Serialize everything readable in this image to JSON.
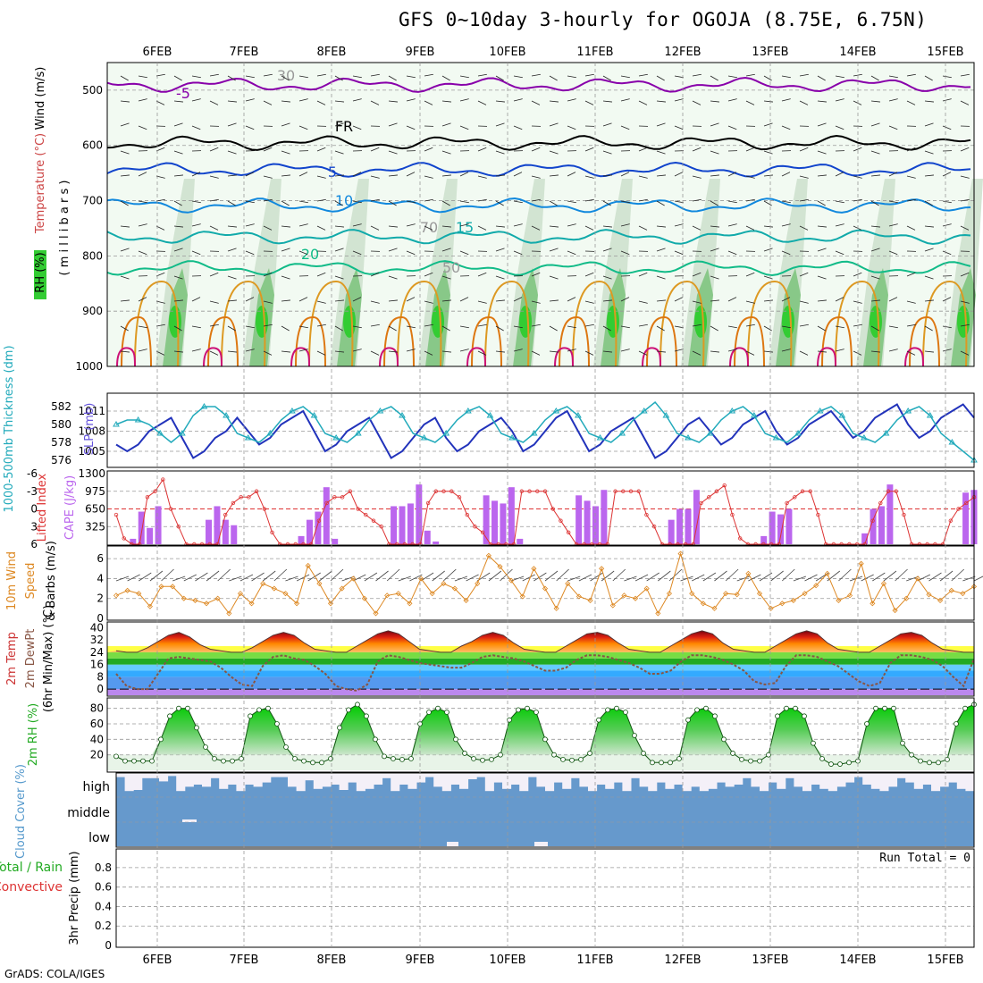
{
  "title": "GFS 0~10day 3-hourly for OGOJA (8.75E, 6.75N)",
  "credit": "GrADS: COLA/IGES",
  "dates": [
    "6FEB",
    "7FEB",
    "8FEB",
    "9FEB",
    "10FEB",
    "11FEB",
    "12FEB",
    "13FEB",
    "14FEB",
    "15FEB"
  ],
  "colors": {
    "temp_contours": [
      "#8800aa",
      "#1144cc",
      "#1188dd",
      "#11aaaa",
      "#11bb88",
      "#dd9922",
      "#dd7711",
      "#cc1177"
    ],
    "slp": "#2233bb",
    "thickness": "#22aabb",
    "cape": "#bb66ee",
    "li": "#dd3333",
    "wind": "#dd8822",
    "rh": "#22bb22",
    "cloud": "#6699cc"
  },
  "chart_data": [
    {
      "type": "contour",
      "panel": "upper-air",
      "ylabel_parts": [
        "RH (%)",
        "Temperature (°C)",
        "Wind (m/s)"
      ],
      "ylabel2": "( m i l l i b a r s )",
      "y_ticks": [
        "500",
        "600",
        "700",
        "800",
        "900",
        "1000"
      ],
      "ylim": [
        1000,
        450
      ],
      "contour_labels": [
        "-5",
        "FR",
        "5",
        "10",
        "15",
        "20",
        "30",
        "50",
        "70"
      ]
    },
    {
      "type": "line",
      "panel": "slp-thickness",
      "ylabel_left": "1000-500mb Thickness (dm)",
      "ylabel_right": "SLP (mb)",
      "left_ticks": [
        "582",
        "580",
        "578",
        "576"
      ],
      "right_ticks": [
        "1011",
        "1008",
        "1005"
      ],
      "series": [
        {
          "name": "SLP",
          "values": [
            1006,
            1005,
            1006,
            1008,
            1009,
            1010,
            1007,
            1004,
            1005,
            1007,
            1008,
            1010,
            1008,
            1006,
            1007,
            1009,
            1010,
            1011,
            1008,
            1005,
            1006,
            1008,
            1009,
            1010,
            1007,
            1004,
            1005,
            1007,
            1009,
            1010,
            1007,
            1005,
            1006,
            1008,
            1009,
            1010,
            1008,
            1005,
            1006,
            1008,
            1010,
            1011,
            1008,
            1005,
            1006,
            1008,
            1009,
            1010,
            1007,
            1004,
            1005,
            1007,
            1009,
            1010,
            1008,
            1006,
            1007,
            1009,
            1010,
            1011,
            1008,
            1006,
            1007,
            1009,
            1010,
            1011,
            1009,
            1007,
            1008,
            1010,
            1011,
            1012,
            1009,
            1007,
            1008,
            1010,
            1011,
            1012,
            1010
          ]
        },
        {
          "name": "Thickness",
          "values": [
            580,
            580.5,
            580.5,
            580,
            579,
            578,
            579,
            581,
            582,
            582,
            581,
            579,
            578.5,
            578,
            579,
            580.5,
            581.5,
            582,
            581,
            579,
            578.5,
            578,
            579,
            580.5,
            581.5,
            582,
            581,
            579,
            578.5,
            578,
            579,
            580.5,
            581.5,
            582,
            581,
            579,
            578.5,
            578,
            579,
            580.5,
            581.5,
            582,
            581,
            579,
            578.5,
            578,
            579,
            580.5,
            581.5,
            582.5,
            581,
            579,
            578.5,
            578,
            579,
            580.5,
            581.5,
            582,
            581,
            579,
            578.5,
            578,
            579,
            580.5,
            581.5,
            582,
            581,
            579,
            578.5,
            578,
            579,
            580.5,
            581.5,
            582,
            581,
            579,
            578,
            577,
            576
          ]
        }
      ]
    },
    {
      "type": "bar",
      "panel": "cape-li",
      "ylabel_left": "Lifted Index",
      "ylabel_right": "CAPE (J/kg)",
      "left_ticks": [
        "-6",
        "-3",
        "0",
        "3",
        "6"
      ],
      "right_ticks": [
        "1300",
        "975",
        "650",
        "325"
      ],
      "cape_values": [
        0,
        0,
        100,
        600,
        300,
        700,
        0,
        0,
        0,
        0,
        0,
        450,
        700,
        450,
        350,
        0,
        0,
        0,
        0,
        0,
        0,
        0,
        150,
        450,
        600,
        1050,
        100,
        0,
        0,
        0,
        0,
        0,
        0,
        700,
        700,
        750,
        1100,
        250,
        50,
        0,
        0,
        0,
        0,
        0,
        900,
        800,
        750,
        1050,
        100,
        0,
        0,
        0,
        0,
        0,
        0,
        900,
        800,
        700,
        1000,
        0,
        0,
        0,
        0,
        0,
        0,
        0,
        450,
        650,
        650,
        1000,
        0,
        0,
        0,
        0,
        0,
        0,
        0,
        150,
        600,
        550,
        650,
        0,
        0,
        0,
        0,
        0,
        0,
        0,
        0,
        200,
        650,
        700,
        1100,
        0,
        0,
        0,
        0,
        0,
        0,
        0,
        0,
        950,
        1000
      ],
      "li_values": [
        1,
        5,
        6,
        6,
        -2,
        -3,
        -5,
        0,
        3,
        6,
        6,
        6,
        6,
        6,
        1,
        -1,
        -2,
        -2,
        -3,
        0,
        4,
        6,
        6,
        6,
        6,
        6,
        2,
        -1,
        -2,
        -2,
        -3,
        0,
        1,
        2,
        3,
        6,
        6,
        6,
        6,
        6,
        -1,
        -3,
        -3,
        -3,
        -2,
        1,
        3,
        4,
        6,
        6,
        6,
        6,
        -3,
        -3,
        -3,
        -3,
        0,
        2,
        4,
        6,
        6,
        6,
        6,
        6,
        -3,
        -3,
        -3,
        -3,
        1,
        3,
        6,
        6,
        6,
        6,
        6,
        -1,
        -2,
        -3,
        -4,
        1,
        5,
        6,
        6,
        6,
        6,
        6,
        -1,
        -2,
        -3,
        -3,
        1,
        6,
        6,
        6,
        6,
        6,
        6,
        2,
        -1,
        -3,
        -3,
        1,
        6,
        6,
        6,
        6,
        6,
        2,
        0,
        -1,
        -2
      ]
    },
    {
      "type": "line",
      "panel": "wind10m",
      "ylabel": "10m Wind Speed & Barbs (m/s)",
      "ylabel_parts": [
        "10m Wind",
        "Speed",
        "& Barbs (m/s)"
      ],
      "y_ticks": [
        "6",
        "4",
        "2",
        "0"
      ],
      "ylim": [
        0,
        7
      ],
      "values": [
        2.3,
        2.8,
        2.5,
        1.2,
        3.2,
        3.2,
        2,
        1.8,
        1.5,
        2,
        0.5,
        2.5,
        1.5,
        3.5,
        3,
        2.5,
        1.5,
        5.3,
        3.5,
        1.5,
        3,
        4,
        2,
        0.5,
        2.3,
        2.5,
        1.5,
        4,
        2.5,
        3.5,
        3,
        1.8,
        3.5,
        6.3,
        5.2,
        3.8,
        2.2,
        5,
        3,
        1,
        3.5,
        2.2,
        1.8,
        5,
        1.3,
        2.3,
        2,
        3,
        0.5,
        2.5,
        6.5,
        2.5,
        1.5,
        1,
        2.5,
        2.4,
        4.5,
        2.5,
        1,
        1.5,
        1.8,
        2.5,
        3.3,
        4.5,
        1.8,
        2.3,
        5.5,
        1.5,
        3.5,
        0.8,
        2,
        4,
        2.4,
        1.8,
        2.8,
        2.5,
        3.2
      ]
    },
    {
      "type": "area",
      "panel": "temp-dewpt",
      "ylabel_parts": [
        "2m Temp",
        "2m DewPt",
        "(6hr Min/Max) (°C)"
      ],
      "y_ticks": [
        "40",
        "32",
        "24",
        "16",
        "8",
        "0"
      ],
      "ylim": [
        -4,
        42
      ],
      "temp_values": [
        25,
        24,
        24,
        27,
        31,
        35,
        37,
        34,
        29,
        26,
        25,
        24,
        24,
        27,
        31,
        35,
        37,
        35,
        30,
        26,
        25,
        24,
        24,
        28,
        32,
        36,
        38,
        36,
        31,
        26,
        25,
        24,
        24,
        28,
        31,
        35,
        37,
        35,
        30,
        26,
        25,
        24,
        24,
        28,
        32,
        36,
        37,
        35,
        30,
        26,
        25,
        24,
        24,
        28,
        32,
        36,
        38,
        36,
        30,
        26,
        25,
        24,
        24,
        28,
        32,
        36,
        38,
        36,
        30,
        26,
        25,
        24,
        24,
        28,
        32,
        36,
        37,
        35,
        30,
        26,
        25,
        24,
        24
      ],
      "dewpt_values": [
        10,
        2,
        0,
        0,
        10,
        20,
        21,
        20,
        19,
        18,
        14,
        8,
        3,
        2,
        15,
        21,
        22,
        20,
        19,
        15,
        10,
        2,
        0,
        -1,
        3,
        18,
        22,
        21,
        19,
        17,
        16,
        15,
        14,
        14,
        17,
        21,
        22,
        21,
        20,
        18,
        15,
        12,
        12,
        14,
        19,
        22,
        22,
        21,
        19,
        17,
        14,
        10,
        10,
        12,
        18,
        22,
        22,
        21,
        19,
        16,
        12,
        5,
        3,
        4,
        15,
        22,
        22,
        21,
        18,
        15,
        10,
        5,
        2,
        4,
        17,
        22,
        22,
        21,
        19,
        15,
        8,
        2,
        20
      ]
    },
    {
      "type": "area",
      "panel": "rh2m",
      "ylabel": "2m RH (%)",
      "y_ticks": [
        "80",
        "60",
        "40",
        "20"
      ],
      "ylim": [
        0,
        90
      ],
      "values": [
        18,
        12,
        12,
        12,
        12,
        40,
        70,
        80,
        80,
        55,
        30,
        15,
        12,
        12,
        15,
        70,
        78,
        80,
        60,
        30,
        15,
        12,
        10,
        10,
        15,
        55,
        78,
        85,
        70,
        40,
        18,
        15,
        14,
        15,
        60,
        75,
        80,
        75,
        40,
        22,
        15,
        13,
        14,
        20,
        65,
        78,
        80,
        75,
        40,
        20,
        14,
        13,
        14,
        22,
        65,
        78,
        80,
        75,
        45,
        22,
        10,
        10,
        10,
        15,
        65,
        78,
        80,
        70,
        40,
        22,
        14,
        12,
        12,
        20,
        70,
        80,
        80,
        70,
        35,
        15,
        8,
        8,
        10,
        12,
        60,
        80,
        80,
        80,
        35,
        20,
        12,
        10,
        10,
        14,
        60,
        80,
        85
      ]
    },
    {
      "type": "heatmap",
      "panel": "cloud",
      "ylabel": "Cloud Cover (%)",
      "levels": [
        "high",
        "middle",
        "low"
      ],
      "high_values": [
        85,
        20,
        25,
        80,
        80,
        65,
        90,
        20,
        40,
        50,
        40,
        80,
        30,
        50,
        20,
        50,
        40,
        60,
        85,
        85,
        40,
        20,
        70,
        30,
        40,
        50,
        25,
        60,
        20,
        30,
        50,
        80,
        20,
        50,
        30,
        60,
        85,
        40,
        20,
        50,
        30,
        75,
        85,
        20,
        60,
        30,
        50,
        20,
        85,
        40,
        20,
        60,
        30,
        80,
        40,
        20,
        50,
        30,
        60,
        20,
        80,
        40,
        20,
        60,
        30,
        50,
        20,
        40,
        20,
        30,
        60,
        40,
        50,
        80,
        40,
        20,
        60,
        30,
        80,
        40,
        20,
        50,
        30,
        20,
        40,
        60,
        85,
        50,
        30,
        20,
        40,
        80,
        60,
        30,
        50,
        20,
        40,
        60,
        30,
        20
      ]
    },
    {
      "type": "bar",
      "panel": "precip",
      "ylabel_parts": [
        "Total / Rain",
        "Convective",
        "3hr Precip (mm)"
      ],
      "y_ticks": [
        "0.8",
        "0.6",
        "0.4",
        "0.2",
        "0"
      ],
      "ylim": [
        0,
        0.9
      ],
      "run_total": "Run Total = 0",
      "values": []
    }
  ]
}
